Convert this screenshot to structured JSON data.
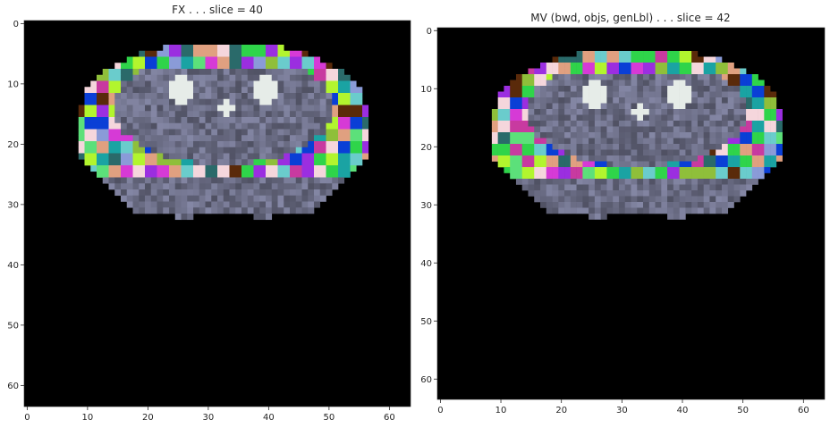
{
  "panels": [
    {
      "title": "FX . . . slice = 40",
      "x_ticks": [
        "0",
        "10",
        "20",
        "30",
        "40",
        "50",
        "60"
      ],
      "y_ticks": [
        "0",
        "10",
        "20",
        "30",
        "40",
        "50",
        "60"
      ],
      "image_grid": 64
    },
    {
      "title": "MV (bwd, objs, genLbl) . . . slice = 42",
      "x_ticks": [
        "0",
        "10",
        "20",
        "30",
        "40",
        "50",
        "60"
      ],
      "y_ticks": [
        "0",
        "10",
        "20",
        "30",
        "40",
        "50",
        "60"
      ],
      "image_grid": 64
    }
  ],
  "colors": {
    "background": "#000000",
    "tissue": "#6a6c84",
    "bright": "#e6ece8",
    "label_palette": [
      "#d63ad6",
      "#9b2ee0",
      "#8fbf3a",
      "#b2f52e",
      "#f5d6dc",
      "#5ce07a",
      "#2fd44a",
      "#1aa3a3",
      "#8a9bd8",
      "#0a3fd6",
      "#e0a080",
      "#c83aa0",
      "#5a2a0a",
      "#2a6a6a",
      "#6acccc"
    ]
  }
}
